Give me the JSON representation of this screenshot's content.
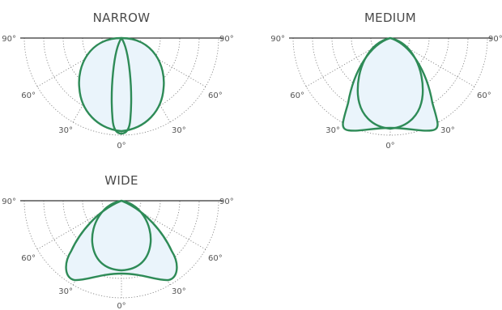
{
  "colors": {
    "curve": "#2e8b57",
    "fill": "#eaf4fb",
    "grid": "#7a7a7a",
    "text": "#4a4a4a"
  },
  "diagrams": [
    {
      "title": "NARROW",
      "angle_labels": {
        "left90": "90°",
        "right90": "90°",
        "left60": "60°",
        "right60": "60°",
        "left30": "30°",
        "right30": "30°",
        "bottom0": "0°"
      },
      "outer_curve": "wide_round",
      "inner_curve": "spindle"
    },
    {
      "title": "MEDIUM",
      "angle_labels": {
        "left90": "90°",
        "right90": "90°",
        "left60": "60°",
        "right60": "60°",
        "left30": "30°",
        "right30": "30°",
        "bottom0": "0°"
      },
      "outer_curve": "lobed",
      "inner_curve": "rounded"
    },
    {
      "title": "WIDE",
      "angle_labels": {
        "left90": "90°",
        "right90": "90°",
        "left60": "60°",
        "right60": "60°",
        "left30": "30°",
        "right30": "30°",
        "bottom0": "0°"
      },
      "outer_curve": "wide_lobed",
      "inner_curve": "rounded"
    }
  ]
}
